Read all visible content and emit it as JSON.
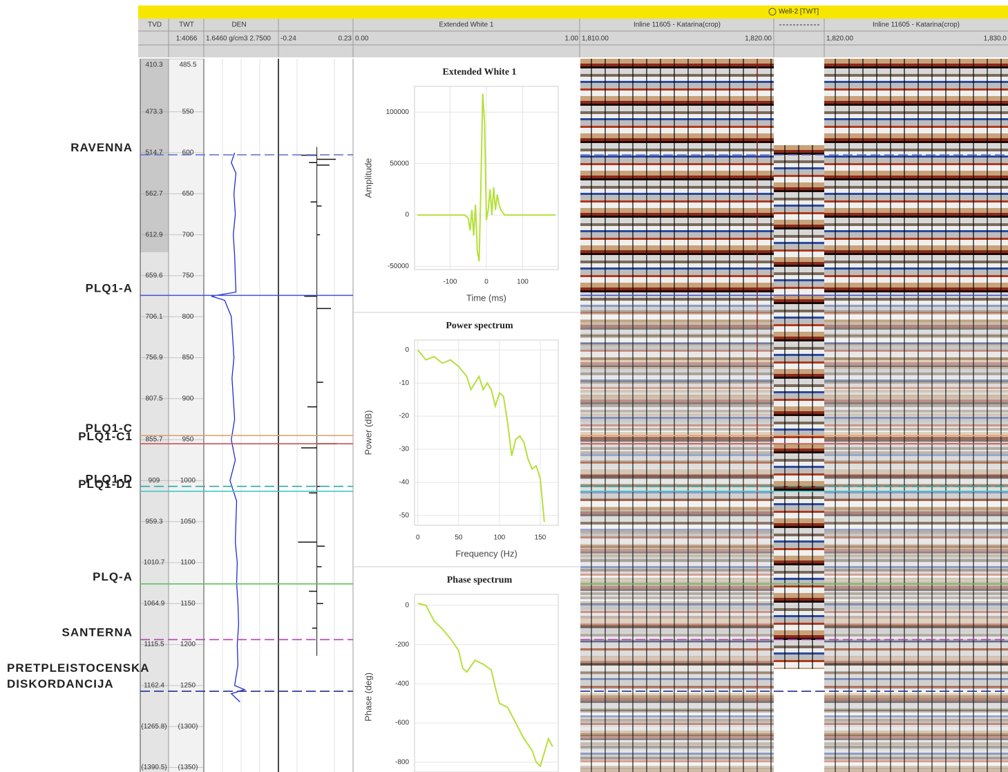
{
  "header": {
    "title": "Well-2 [TWT]",
    "tvd": "TVD",
    "twt": "TWT",
    "scale": "1:4066",
    "den": "DEN",
    "den_range": "1.6460 g/cm3 2.7500",
    "wavelet": "Extended White 1",
    "inline1": "Inline 11605 - Katarina(crop)",
    "inline2": "Inline 11605 - Katarina(crop)"
  },
  "track_ranges": {
    "rc": [
      -0.24,
      0.23
    ],
    "wavelet": [
      {
        "value": 0,
        "label": "0.00"
      },
      {
        "value": 1,
        "label": "1.00"
      }
    ],
    "inline1": [
      {
        "value": 1810,
        "label": "1,810.00"
      },
      {
        "value": 1820,
        "label": "1,820.00"
      }
    ],
    "inline2": [
      {
        "value": 1820,
        "label": "1,820.00"
      },
      {
        "value": 1830,
        "label": "1,830.0"
      }
    ]
  },
  "depth_axis": {
    "twt_lim": [
      485.3,
      1355.5
    ],
    "twt_ticks": [
      485.5,
      550,
      600,
      650,
      700,
      750,
      800,
      850,
      900,
      950,
      1000,
      1050,
      1100,
      1150,
      1200,
      1250,
      {
        "value": 1300,
        "label": "(1300)"
      },
      {
        "value": 1350,
        "label": "(1350)"
      }
    ],
    "tvd_labels": [
      "410.3",
      "473.3",
      "514.7",
      "562.7",
      "612.9",
      "659.6",
      "706.1",
      "756.9",
      "807.5",
      "855.7",
      "909",
      "959.3",
      "1010.7",
      "1064.9",
      "1115.5",
      "1162.4",
      "(1265.8)",
      "(1390.5)"
    ]
  },
  "den_log": {
    "xlim": [
      1.646,
      2.75
    ],
    "color": "#1a2ad8",
    "twt": [
      600,
      612,
      625,
      650,
      675,
      700,
      725,
      750,
      770,
      775,
      780,
      800,
      825,
      850,
      875,
      900,
      925,
      950,
      975,
      1000,
      1025,
      1050,
      1075,
      1100,
      1125,
      1150,
      1175,
      1200,
      1225,
      1250,
      1255,
      1260,
      1270
    ],
    "values": [
      2.1,
      2.05,
      2.12,
      2.09,
      2.11,
      2.08,
      2.1,
      2.11,
      2.12,
      1.75,
      1.95,
      2.05,
      2.07,
      2.09,
      2.06,
      2.08,
      2.1,
      2.05,
      2.11,
      2.03,
      2.13,
      2.12,
      2.11,
      2.14,
      2.13,
      2.15,
      2.16,
      2.14,
      2.15,
      2.1,
      2.25,
      2.05,
      2.18
    ]
  },
  "rc_log": {
    "color": "#111111",
    "twt": [
      603,
      608,
      612,
      615,
      660,
      665,
      700,
      775,
      790,
      880,
      910,
      955,
      960,
      1007,
      1015,
      1075,
      1080,
      1105,
      1135,
      1150,
      1180
    ],
    "values": [
      -0.1,
      0.12,
      -0.05,
      0.08,
      -0.04,
      0.03,
      0.02,
      -0.08,
      0.09,
      0.04,
      -0.06,
      0.13,
      -0.1,
      0.06,
      -0.05,
      -0.12,
      0.05,
      0.03,
      -0.05,
      0.04,
      -0.03
    ]
  },
  "horizons": [
    {
      "label": [
        "RAVENNA"
      ],
      "twt": 602.5,
      "color": "#5a6ad0",
      "dashed": true
    },
    {
      "label": [
        "PLQ1-A"
      ],
      "twt": 774,
      "color": "#4050d8",
      "dashed": false
    },
    {
      "label": [
        "PLQ1-C"
      ],
      "twt": 945,
      "color": "#e0a070",
      "dashed": false
    },
    {
      "label": [
        "PLQ1-C1"
      ],
      "twt": 955,
      "color": "#d05050",
      "dashed": false
    },
    {
      "label": [
        "PLQ1-D"
      ],
      "twt": 1007,
      "color": "#30a898",
      "dashed": true
    },
    {
      "label": [
        "PLQ1-D1"
      ],
      "twt": 1013,
      "color": "#40c8c8",
      "dashed": false
    },
    {
      "label": [
        "PLQ-A"
      ],
      "twt": 1126,
      "color": "#60c060",
      "dashed": false
    },
    {
      "label": [
        "SANTERNA"
      ],
      "twt": 1194,
      "color": "#b040b0",
      "dashed": true
    },
    {
      "label": [
        "PRETPLEISTOCENSKA",
        "DISKORDANCIJA"
      ],
      "twt": 1257,
      "color": "#203090",
      "dashed": true
    }
  ],
  "chart_data": [
    {
      "type": "line",
      "title": "Extended White 1",
      "x_label": "Time (ms)",
      "y_label": "Amplitude",
      "color": "#b5e03a",
      "x": [
        -190,
        -60,
        -50,
        -45,
        -40,
        -35,
        -30,
        -25,
        -20,
        -15,
        -10,
        -5,
        0,
        5,
        10,
        15,
        20,
        25,
        30,
        35,
        40,
        50,
        60,
        190
      ],
      "values": [
        0,
        0,
        -3000,
        -15000,
        5000,
        -20000,
        10000,
        -35000,
        -45000,
        30000,
        118000,
        90000,
        -5000,
        5000,
        25000,
        0,
        27000,
        5000,
        20000,
        10000,
        5000,
        0,
        0,
        0
      ],
      "xlim": [
        -198,
        198
      ],
      "ylim": [
        -53000,
        125000
      ],
      "xticks": [
        -100,
        0,
        100
      ],
      "yticks": [
        -50000,
        0,
        50000,
        100000
      ],
      "grid": true
    },
    {
      "type": "line",
      "title": "Power spectrum",
      "x_label": "Frequency (Hz)",
      "y_label": "Power (dB)",
      "color": "#b5e03a",
      "x": [
        0,
        10,
        20,
        30,
        40,
        50,
        60,
        65,
        70,
        75,
        80,
        85,
        90,
        95,
        100,
        105,
        110,
        115,
        120,
        125,
        130,
        135,
        140,
        145,
        150,
        155
      ],
      "values": [
        0,
        -3,
        -2,
        -4,
        -3,
        -5,
        -8,
        -12,
        -10,
        -8,
        -12,
        -10,
        -12,
        -17,
        -13,
        -14,
        -22,
        -32,
        -27,
        -26,
        -28,
        -33,
        -36,
        -35,
        -39,
        -52
      ],
      "xlim": [
        -4,
        172
      ],
      "ylim": [
        -53,
        3
      ],
      "xticks": [
        0,
        50,
        100,
        150
      ],
      "yticks": [
        -50,
        -40,
        -30,
        -20,
        -10,
        0
      ],
      "grid": true
    },
    {
      "type": "line",
      "title": "Phase spectrum",
      "y_label": "Phase (deg)",
      "color": "#b5e03a",
      "x": [
        0,
        10,
        20,
        30,
        40,
        50,
        55,
        60,
        70,
        80,
        90,
        95,
        100,
        110,
        120,
        130,
        140,
        145,
        150,
        155,
        160,
        165
      ],
      "values": [
        10,
        0,
        -80,
        -120,
        -170,
        -230,
        -320,
        -340,
        -280,
        -300,
        -330,
        -420,
        -500,
        -520,
        -600,
        -680,
        -740,
        -800,
        -820,
        -750,
        -680,
        -720
      ],
      "xlim": [
        -4,
        172
      ],
      "ylim": [
        -850,
        56
      ],
      "yticks": [
        -800,
        -600,
        -400,
        -200,
        0
      ],
      "grid": true
    }
  ]
}
